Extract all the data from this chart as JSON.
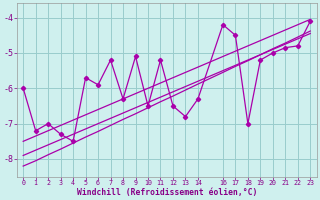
{
  "xlabel": "Windchill (Refroidissement éolien,°C)",
  "bg_color": "#cff0ee",
  "line_color": "#aa00aa",
  "grid_color": "#99cccc",
  "xlim": [
    -0.5,
    23.5
  ],
  "ylim": [
    -8.5,
    -3.6
  ],
  "yticks": [
    -8,
    -7,
    -6,
    -5,
    -4
  ],
  "xticks": [
    0,
    1,
    2,
    3,
    4,
    5,
    6,
    7,
    8,
    9,
    10,
    11,
    12,
    13,
    14,
    16,
    17,
    18,
    19,
    20,
    21,
    22,
    23
  ],
  "x": [
    0,
    1,
    2,
    3,
    4,
    5,
    6,
    7,
    8,
    9,
    10,
    11,
    12,
    13,
    14,
    16,
    17,
    18,
    19,
    20,
    21,
    22,
    23
  ],
  "y_zigzag": [
    -6.0,
    -7.2,
    -7.0,
    -7.3,
    -7.5,
    -5.7,
    -5.9,
    -5.2,
    -6.3,
    -5.1,
    -6.5,
    -5.2,
    -6.5,
    -6.8,
    -6.3,
    -4.2,
    -4.5,
    -7.0,
    -5.2,
    -5.0,
    -4.85,
    -4.8,
    -4.1
  ],
  "y_trend1": [
    -8.2,
    -8.05,
    -7.88,
    -7.72,
    -7.55,
    -7.38,
    -7.22,
    -7.05,
    -6.88,
    -6.72,
    -6.55,
    -6.38,
    -6.22,
    -6.05,
    -5.88,
    -5.55,
    -5.38,
    -5.22,
    -5.05,
    -4.88,
    -4.72,
    -4.55,
    -4.38
  ],
  "y_trend2": [
    -7.9,
    -7.75,
    -7.6,
    -7.45,
    -7.3,
    -7.15,
    -7.0,
    -6.85,
    -6.7,
    -6.55,
    -6.4,
    -6.25,
    -6.1,
    -5.95,
    -5.8,
    -5.5,
    -5.35,
    -5.2,
    -5.05,
    -4.9,
    -4.75,
    -4.6,
    -4.45
  ],
  "y_trend3": [
    -7.5,
    -7.35,
    -7.2,
    -7.05,
    -6.9,
    -6.75,
    -6.6,
    -6.45,
    -6.3,
    -6.15,
    -6.0,
    -5.85,
    -5.7,
    -5.55,
    -5.4,
    -5.1,
    -4.95,
    -4.8,
    -4.65,
    -4.5,
    -4.35,
    -4.2,
    -4.05
  ]
}
